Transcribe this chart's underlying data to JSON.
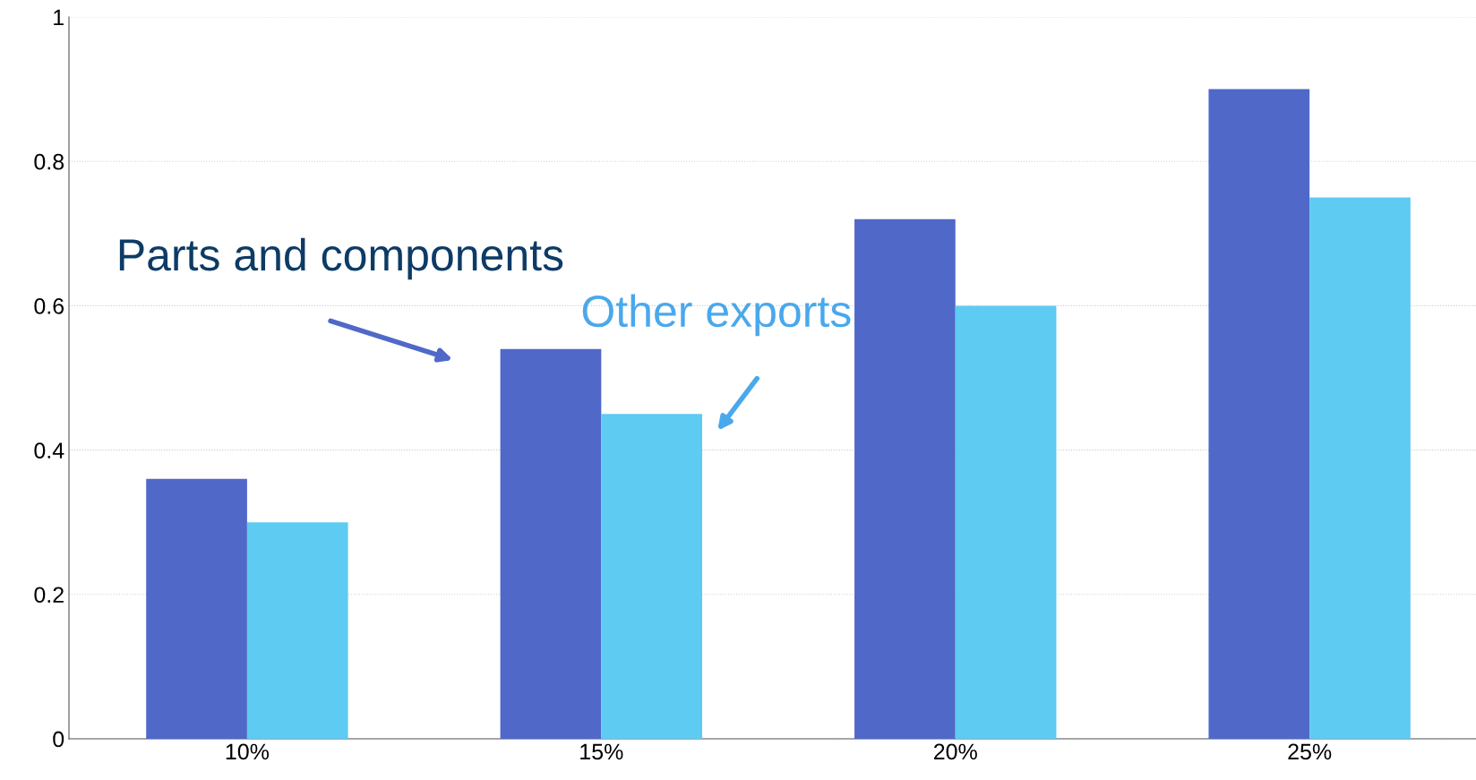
{
  "chart_data": {
    "type": "bar",
    "categories": [
      "10%",
      "15%",
      "20%",
      "25%"
    ],
    "series": [
      {
        "name": "Parts and components",
        "color": "#5068c8",
        "values": [
          0.36,
          0.54,
          0.72,
          0.9
        ]
      },
      {
        "name": "Other exports",
        "color": "#5ecbf2",
        "values": [
          0.3,
          0.45,
          0.6,
          0.75
        ]
      }
    ],
    "ylim": [
      0,
      1
    ],
    "yticks": [
      0,
      0.2,
      0.4,
      0.6,
      0.8,
      1
    ],
    "grid": "y",
    "legend": false
  }
}
